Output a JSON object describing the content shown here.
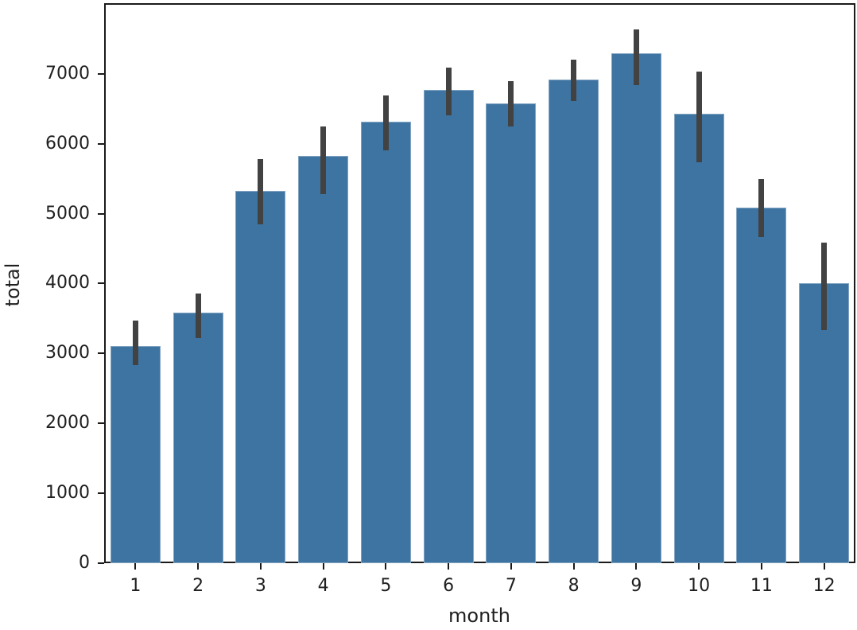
{
  "chart_data": {
    "type": "bar",
    "title": "",
    "xlabel": "month",
    "ylabel": "total",
    "categories": [
      "1",
      "2",
      "3",
      "4",
      "5",
      "6",
      "7",
      "8",
      "9",
      "10",
      "11",
      "12"
    ],
    "values": [
      3110,
      3580,
      5320,
      5820,
      6320,
      6770,
      6580,
      6920,
      7290,
      6430,
      5090,
      4010
    ],
    "error_low": [
      2830,
      3220,
      4850,
      5280,
      5900,
      6400,
      6250,
      6610,
      6840,
      5730,
      4660,
      3330
    ],
    "error_high": [
      3470,
      3860,
      5780,
      6250,
      6690,
      7090,
      6900,
      7200,
      7640,
      7030,
      5500,
      4590
    ],
    "yticks": [
      0,
      1000,
      2000,
      3000,
      4000,
      5000,
      6000,
      7000
    ],
    "ylim": [
      0,
      8010
    ],
    "grid": false,
    "legend": null,
    "bar_color": "#3e74a1",
    "error_color": "#424242",
    "axis_color": "#1a1a1a"
  }
}
